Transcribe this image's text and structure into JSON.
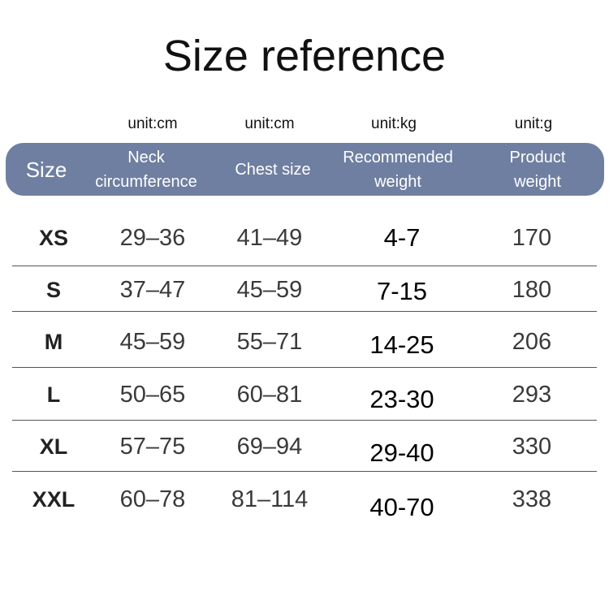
{
  "title": "Size reference",
  "units": [
    "unit:cm",
    "unit:cm",
    "unit:kg",
    "unit:g"
  ],
  "header": {
    "size": "Size",
    "neck": [
      "Neck",
      "circumference"
    ],
    "chest": "Chest size",
    "recommended": [
      "Recommended",
      "weight"
    ],
    "product": [
      "Product",
      "weight"
    ]
  },
  "header_color": "#6f7fa1",
  "rows": [
    {
      "size": "XS",
      "neck": "29–36",
      "chest": "41–49",
      "weight": "4-7",
      "product": "170"
    },
    {
      "size": "S",
      "neck": "37–47",
      "chest": "45–59",
      "weight": "7-15",
      "product": "180"
    },
    {
      "size": "M",
      "neck": "45–59",
      "chest": "55–71",
      "weight": "14-25",
      "product": "206"
    },
    {
      "size": "L",
      "neck": "50–65",
      "chest": "60–81",
      "weight": "23-30",
      "product": "293"
    },
    {
      "size": "XL",
      "neck": "57–75",
      "chest": "69–94",
      "weight": "29-40",
      "product": "330"
    },
    {
      "size": "XXL",
      "neck": "60–78",
      "chest": "81–114",
      "weight": "40-70",
      "product": "338"
    }
  ]
}
